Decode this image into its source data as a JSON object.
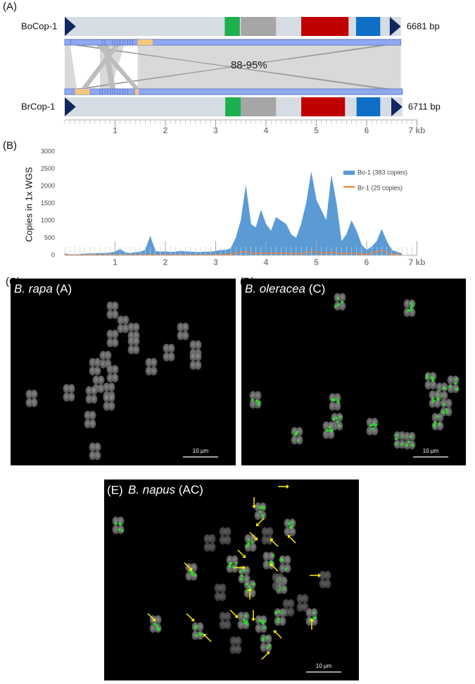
{
  "panel_labels": [
    "(A)",
    "(B)",
    "(C)",
    "(D)",
    "(E)"
  ],
  "gene_map": {
    "identity": "88-95%",
    "xlim": [
      0,
      7
    ],
    "xticks": [
      1,
      2,
      3,
      4,
      5,
      6,
      {
        "value": 7,
        "label": "7 kb"
      }
    ],
    "tracks": [
      {
        "name": "BoCop-1",
        "length_label": "6681 bp",
        "length": 6.681,
        "features": [
          {
            "start": 0,
            "end": 0.22,
            "color": "#10265e",
            "shape": "ltr"
          },
          {
            "start": 3.18,
            "end": 3.48,
            "color": "#1db04f",
            "shape": "box"
          },
          {
            "start": 3.5,
            "end": 4.2,
            "color": "#a6a6a6",
            "shape": "box"
          },
          {
            "start": 4.7,
            "end": 5.64,
            "color": "#c00000",
            "shape": "box"
          },
          {
            "start": 5.79,
            "end": 6.27,
            "color": "#0f6fc6",
            "shape": "box"
          },
          {
            "start": 6.46,
            "end": 6.681,
            "color": "#10265e",
            "shape": "ltr"
          }
        ]
      },
      {
        "name": "BrCop-1",
        "length_label": "6711 bp",
        "length": 6.711,
        "features": [
          {
            "start": 0,
            "end": 0.22,
            "color": "#10265e",
            "shape": "ltr"
          },
          {
            "start": 3.19,
            "end": 3.5,
            "color": "#1db04f",
            "shape": "box"
          },
          {
            "start": 3.5,
            "end": 4.2,
            "color": "#a6a6a6",
            "shape": "box"
          },
          {
            "start": 4.7,
            "end": 5.57,
            "color": "#c00000",
            "shape": "box"
          },
          {
            "start": 5.8,
            "end": 6.27,
            "color": "#0f6fc6",
            "shape": "box"
          },
          {
            "start": 6.49,
            "end": 6.711,
            "color": "#10265e",
            "shape": "ltr"
          }
        ]
      }
    ]
  },
  "chart_data": {
    "type": "area",
    "ylabel": "Copies in 1x WGS",
    "xlim": [
      0,
      7
    ],
    "ylim": [
      0,
      3000
    ],
    "yticks": [
      0,
      500,
      1000,
      1500,
      2000,
      2500,
      3000
    ],
    "xticks": [
      1,
      2,
      3,
      4,
      5,
      6,
      {
        "value": 7,
        "label": "7 kb"
      }
    ],
    "legend": "upper right",
    "x": [
      0,
      0.1,
      0.2,
      0.3,
      0.4,
      0.5,
      0.6,
      0.7,
      0.8,
      0.9,
      1.0,
      1.1,
      1.2,
      1.3,
      1.4,
      1.5,
      1.6,
      1.7,
      1.8,
      1.9,
      2.0,
      2.1,
      2.2,
      2.3,
      2.4,
      2.5,
      2.6,
      2.7,
      2.8,
      2.9,
      3.0,
      3.1,
      3.2,
      3.3,
      3.4,
      3.5,
      3.6,
      3.7,
      3.8,
      3.9,
      4.0,
      4.1,
      4.2,
      4.3,
      4.4,
      4.5,
      4.6,
      4.7,
      4.8,
      4.9,
      5.0,
      5.1,
      5.2,
      5.3,
      5.4,
      5.5,
      5.6,
      5.7,
      5.8,
      5.9,
      6.0,
      6.1,
      6.2,
      6.3,
      6.4,
      6.5,
      6.6,
      6.7
    ],
    "series": [
      {
        "name": "Bo-1 (383 copies)",
        "color": "#5b9bd5",
        "fill": true,
        "values": [
          50,
          20,
          10,
          30,
          40,
          50,
          50,
          60,
          60,
          70,
          100,
          180,
          80,
          60,
          80,
          100,
          150,
          550,
          120,
          100,
          110,
          90,
          100,
          120,
          110,
          100,
          90,
          90,
          100,
          100,
          120,
          150,
          150,
          200,
          500,
          1000,
          2000,
          900,
          800,
          1300,
          900,
          700,
          1100,
          1000,
          900,
          600,
          500,
          900,
          1500,
          2400,
          1600,
          1300,
          1000,
          2300,
          1500,
          400,
          600,
          1000,
          700,
          300,
          150,
          250,
          400,
          750,
          400,
          150,
          100,
          50
        ]
      },
      {
        "name": "Br-1 (25 copies)",
        "color": "#ed7d31",
        "fill": false,
        "values": [
          10,
          10,
          10,
          10,
          10,
          10,
          10,
          10,
          10,
          10,
          10,
          10,
          10,
          10,
          10,
          10,
          10,
          15,
          10,
          10,
          10,
          10,
          10,
          10,
          10,
          10,
          10,
          10,
          10,
          10,
          15,
          20,
          20,
          30,
          60,
          80,
          120,
          60,
          50,
          80,
          60,
          50,
          70,
          60,
          60,
          50,
          40,
          60,
          90,
          110,
          80,
          70,
          60,
          100,
          70,
          40,
          50,
          70,
          50,
          30,
          30,
          60,
          110,
          140,
          80,
          30,
          20,
          10
        ]
      }
    ]
  },
  "micrographs": [
    {
      "species": "B. rapa",
      "genome": "(A)",
      "scale": "10 µm"
    },
    {
      "species": "B. oleracea",
      "genome": "(C)",
      "scale": "10 µm"
    },
    {
      "species": "B. napus",
      "genome": "(AC)",
      "scale": "10 µm"
    }
  ]
}
